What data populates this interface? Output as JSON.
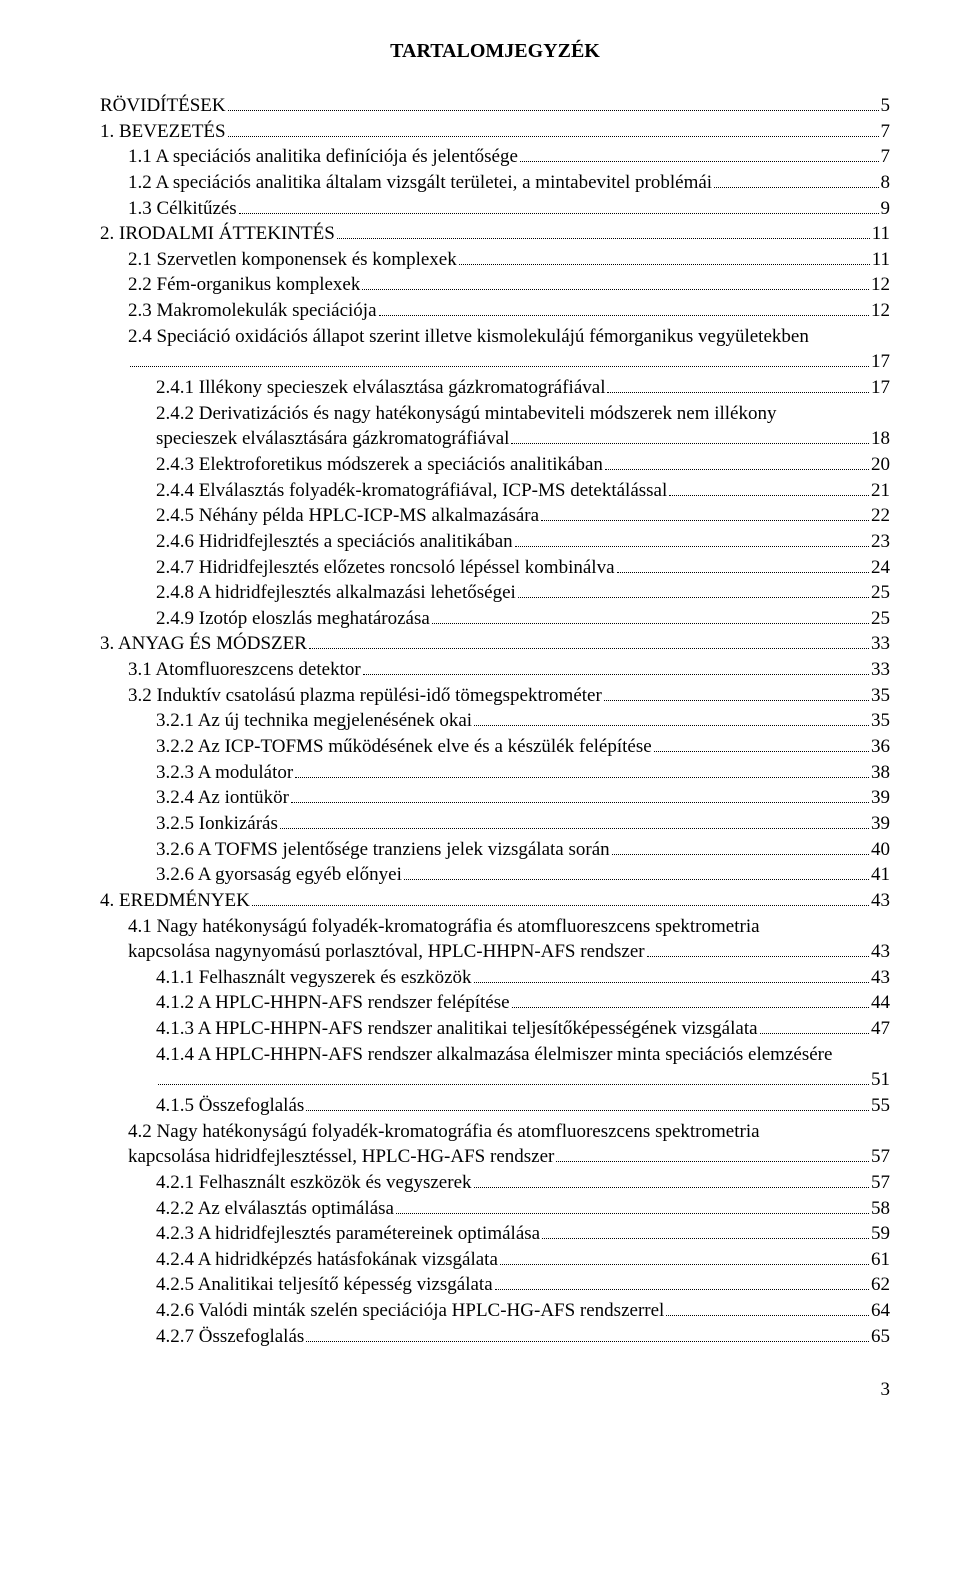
{
  "title": "TARTALOMJEGYZÉK",
  "footer_page": "3",
  "entries": [
    {
      "level": 0,
      "text": "RÖVIDÍTÉSEK",
      "page": "5"
    },
    {
      "level": 0,
      "text": "1. BEVEZETÉS",
      "page": "7"
    },
    {
      "level": 1,
      "text": "1.1 A speciációs analitika definíciója és jelentősége",
      "page": "7"
    },
    {
      "level": 1,
      "text": "1.2 A speciációs analitika általam vizsgált területei, a mintabevitel problémái",
      "page": "8"
    },
    {
      "level": 1,
      "text": "1.3 Célkitűzés",
      "page": "9"
    },
    {
      "level": 0,
      "text": "2. IRODALMI ÁTTEKINTÉS",
      "page": "11"
    },
    {
      "level": 1,
      "text": "2.1 Szervetlen komponensek és komplexek",
      "page": "11"
    },
    {
      "level": 1,
      "text": "2.2 Fém-organikus komplexek",
      "page": "12"
    },
    {
      "level": 1,
      "text": "2.3 Makromolekulák speciációja",
      "page": "12"
    },
    {
      "level": 1,
      "wrap": true,
      "text1": "2.4 Speciáció oxidációs állapot szerint illetve kismolekulájú fémorganikus vegyületekben",
      "text2": "",
      "page": "17"
    },
    {
      "level": 2,
      "text": "2.4.1 Illékony specieszek elválasztása gázkromatográfiával",
      "page": "17"
    },
    {
      "level": 2,
      "wrap": true,
      "text1": "2.4.2 Derivatizációs és nagy hatékonyságú mintabeviteli módszerek nem illékony",
      "text2": "specieszek elválasztására gázkromatográfiával",
      "page": "18"
    },
    {
      "level": 2,
      "text": "2.4.3 Elektroforetikus módszerek a speciációs analitikában",
      "page": "20"
    },
    {
      "level": 2,
      "text": "2.4.4 Elválasztás folyadék-kromatográfiával, ICP-MS detektálással",
      "page": "21"
    },
    {
      "level": 2,
      "text": "2.4.5 Néhány példa HPLC-ICP-MS alkalmazására",
      "page": "22"
    },
    {
      "level": 2,
      "text": "2.4.6 Hidridfejlesztés a speciációs analitikában",
      "page": "23"
    },
    {
      "level": 2,
      "text": "2.4.7 Hidridfejlesztés előzetes roncsoló lépéssel kombinálva",
      "page": "24"
    },
    {
      "level": 2,
      "text": "2.4.8 A hidridfejlesztés alkalmazási lehetőségei",
      "page": "25"
    },
    {
      "level": 2,
      "text": "2.4.9 Izotóp eloszlás meghatározása",
      "page": "25"
    },
    {
      "level": 0,
      "text": "3. ANYAG ÉS MÓDSZER",
      "page": "33"
    },
    {
      "level": 1,
      "text": "3.1 Atomfluoreszcens detektor",
      "page": "33"
    },
    {
      "level": 1,
      "text": "3.2 Induktív csatolású plazma repülési-idő tömegspektrométer",
      "page": "35"
    },
    {
      "level": 2,
      "text": "3.2.1 Az új technika megjelenésének okai",
      "page": "35"
    },
    {
      "level": 2,
      "text": "3.2.2 Az ICP-TOFMS működésének elve és a készülék felépítése",
      "page": "36"
    },
    {
      "level": 2,
      "text": "3.2.3 A modulátor",
      "page": "38"
    },
    {
      "level": 2,
      "text": "3.2.4 Az iontükör",
      "page": "39"
    },
    {
      "level": 2,
      "text": "3.2.5 Ionkizárás",
      "page": "39"
    },
    {
      "level": 2,
      "text": "3.2.6 A TOFMS jelentősége tranziens jelek vizsgálata során",
      "page": "40"
    },
    {
      "level": 2,
      "text": "3.2.6 A gyorsaság egyéb előnyei",
      "page": "41"
    },
    {
      "level": 0,
      "text": "4. EREDMÉNYEK",
      "page": "43"
    },
    {
      "level": 1,
      "wrap": true,
      "text1": "4.1 Nagy hatékonyságú folyadék-kromatográfia és atomfluoreszcens spektrometria",
      "text2": "kapcsolása nagynyomású porlasztóval, HPLC-HHPN-AFS rendszer",
      "page": "43"
    },
    {
      "level": 2,
      "text": "4.1.1 Felhasznált vegyszerek és eszközök",
      "page": "43"
    },
    {
      "level": 2,
      "text": "4.1.2 A HPLC-HHPN-AFS rendszer felépítése",
      "page": "44"
    },
    {
      "level": 2,
      "text": "4.1.3 A HPLC-HHPN-AFS rendszer analitikai teljesítőképességének vizsgálata",
      "page": "47"
    },
    {
      "level": 2,
      "wrap": true,
      "text1": "4.1.4 A HPLC-HHPN-AFS rendszer alkalmazása élelmiszer minta speciációs elemzésére",
      "text2": "",
      "page": "51"
    },
    {
      "level": 2,
      "text": "4.1.5 Összefoglalás",
      "page": "55"
    },
    {
      "level": 1,
      "wrap": true,
      "text1": "4.2 Nagy hatékonyságú folyadék-kromatográfia és atomfluoreszcens spektrometria",
      "text2": "kapcsolása hidridfejlesztéssel, HPLC-HG-AFS rendszer",
      "page": "57"
    },
    {
      "level": 2,
      "text": "4.2.1 Felhasznált eszközök és vegyszerek",
      "page": "57"
    },
    {
      "level": 2,
      "text": "4.2.2 Az elválasztás optimálása",
      "page": "58"
    },
    {
      "level": 2,
      "text": "4.2.3 A hidridfejlesztés paramétereinek optimálása",
      "page": "59"
    },
    {
      "level": 2,
      "text": "4.2.4 A hidridképzés hatásfokának vizsgálata",
      "page": "61"
    },
    {
      "level": 2,
      "text": "4.2.5 Analitikai teljesítő képesség vizsgálata",
      "page": "62"
    },
    {
      "level": 2,
      "text": "4.2.6 Valódi minták szelén speciációja HPLC-HG-AFS rendszerrel",
      "page": "64"
    },
    {
      "level": 2,
      "text": "4.2.7 Összefoglalás",
      "page": "65"
    }
  ]
}
